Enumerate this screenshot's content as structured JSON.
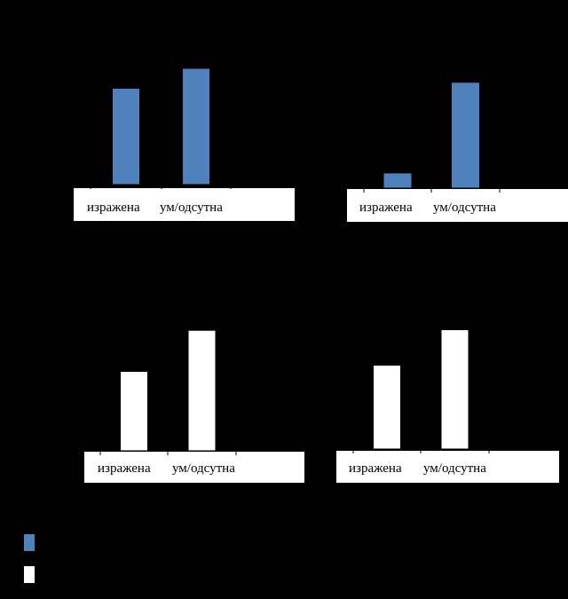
{
  "colors": {
    "background": "#000000",
    "axis": "#000000",
    "box": "#ffffff"
  },
  "chart_data": [
    {
      "type": "bar",
      "categories": [
        "изражена",
        "ум/одсутна"
      ],
      "values": [
        3.6,
        4.35
      ],
      "ylim": [
        0,
        6
      ],
      "yticks": [
        0,
        1,
        2,
        3,
        4,
        5,
        6
      ],
      "grid": false,
      "bar_color": "#4f81bd"
    },
    {
      "type": "bar",
      "categories": [
        "изражена",
        "ум/одсутна"
      ],
      "values": [
        0.35,
        2.5
      ],
      "ylim": [
        0,
        4
      ],
      "yticks": [
        0,
        1,
        2,
        3,
        4
      ],
      "grid": false,
      "bar_color": "#4f81bd"
    },
    {
      "type": "bar",
      "categories": [
        "изражена",
        "ум/одсутна"
      ],
      "values": [
        2.5,
        3.8
      ],
      "ylim": [
        0,
        5
      ],
      "yticks": [
        0,
        1,
        2,
        3,
        4,
        5
      ],
      "grid": false,
      "bar_color": "#ffffff"
    },
    {
      "type": "bar",
      "categories": [
        "изражена",
        "ум/одсутна"
      ],
      "values": [
        2.0,
        2.85
      ],
      "ylim": [
        0,
        4
      ],
      "yticks": [
        0,
        1,
        2,
        3,
        4
      ],
      "grid": false,
      "bar_color": "#ffffff"
    }
  ],
  "legend": {
    "placement": "bottom-left",
    "items": [
      {
        "color": "#4f81bd"
      },
      {
        "color": "#ffffff"
      }
    ]
  }
}
